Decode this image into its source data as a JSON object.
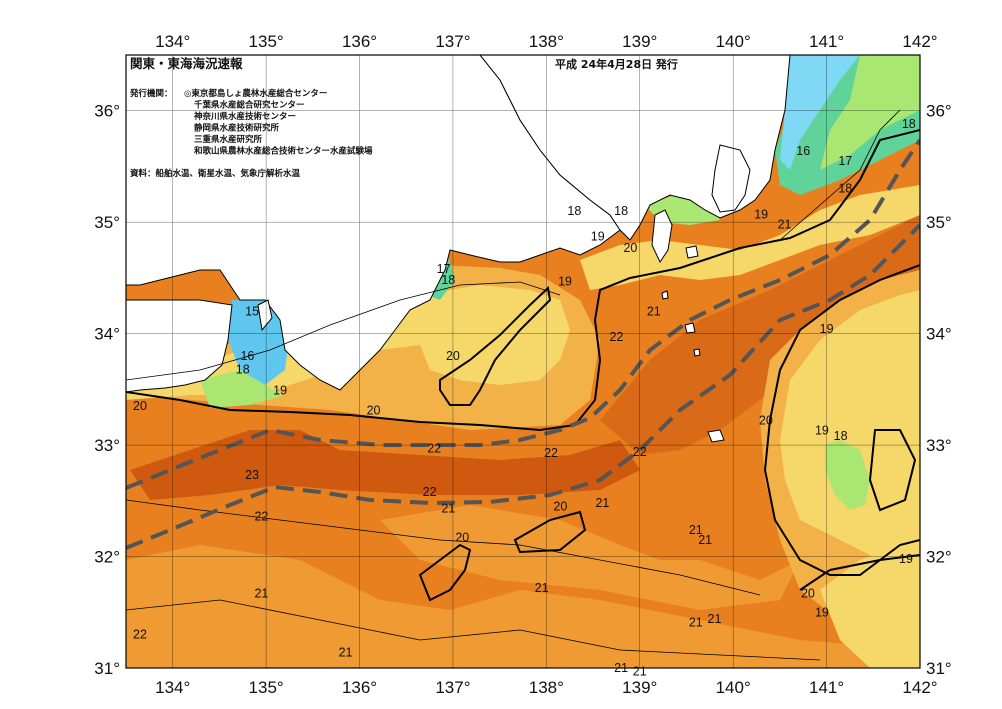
{
  "header": {
    "title": "関東・東海海況速報",
    "date": "平成 24年4月28日 発行"
  },
  "issuers": {
    "label": "発行機関：",
    "items": [
      "◎東京都島しょ農林水産総合センター",
      "千葉県水産総合研究センター",
      "神奈川県水産技術センター",
      "静岡県水産技術研究所",
      "三重県水産研究所",
      "和歌山県農林水産総合技術センター水産試験場"
    ]
  },
  "source": "資料：船舶水温、衛星水温、気象庁解析水温",
  "axes": {
    "lon_labels": [
      "134°",
      "135°",
      "136°",
      "137°",
      "138°",
      "139°",
      "140°",
      "141°",
      "142°"
    ],
    "lat_labels": [
      "36°",
      "35°",
      "34°",
      "33°",
      "32°",
      "31°"
    ]
  },
  "isotherm_labels": [
    {
      "text": "18",
      "lon": 141.88,
      "lat": 35.88
    },
    {
      "text": "16",
      "lon": 140.75,
      "lat": 35.64
    },
    {
      "text": "17",
      "lon": 141.2,
      "lat": 35.55
    },
    {
      "text": "18",
      "lon": 141.2,
      "lat": 35.3
    },
    {
      "text": "18",
      "lon": 138.8,
      "lat": 35.1
    },
    {
      "text": "18",
      "lon": 138.3,
      "lat": 35.1
    },
    {
      "text": "19",
      "lon": 140.3,
      "lat": 35.07
    },
    {
      "text": "21",
      "lon": 140.55,
      "lat": 34.98
    },
    {
      "text": "19",
      "lon": 138.55,
      "lat": 34.87
    },
    {
      "text": "20",
      "lon": 138.9,
      "lat": 34.77
    },
    {
      "text": "17",
      "lon": 136.9,
      "lat": 34.58
    },
    {
      "text": "18",
      "lon": 136.95,
      "lat": 34.48
    },
    {
      "text": "19",
      "lon": 138.2,
      "lat": 34.47
    },
    {
      "text": "21",
      "lon": 139.15,
      "lat": 34.2
    },
    {
      "text": "15",
      "lon": 134.85,
      "lat": 34.2
    },
    {
      "text": "19",
      "lon": 141.0,
      "lat": 34.04
    },
    {
      "text": "22",
      "lon": 138.75,
      "lat": 33.97
    },
    {
      "text": "20",
      "lon": 137.0,
      "lat": 33.8
    },
    {
      "text": "16",
      "lon": 134.8,
      "lat": 33.8
    },
    {
      "text": "18",
      "lon": 134.75,
      "lat": 33.68
    },
    {
      "text": "19",
      "lon": 135.15,
      "lat": 33.49
    },
    {
      "text": "20",
      "lon": 133.65,
      "lat": 33.35
    },
    {
      "text": "20",
      "lon": 136.15,
      "lat": 33.31
    },
    {
      "text": "20",
      "lon": 140.35,
      "lat": 33.22
    },
    {
      "text": "19",
      "lon": 140.95,
      "lat": 33.13
    },
    {
      "text": "18",
      "lon": 141.15,
      "lat": 33.08
    },
    {
      "text": "22",
      "lon": 136.8,
      "lat": 32.97
    },
    {
      "text": "22",
      "lon": 138.05,
      "lat": 32.93
    },
    {
      "text": "22",
      "lon": 139.0,
      "lat": 32.94
    },
    {
      "text": "23",
      "lon": 134.85,
      "lat": 32.73
    },
    {
      "text": "22",
      "lon": 136.75,
      "lat": 32.58
    },
    {
      "text": "21",
      "lon": 138.6,
      "lat": 32.48
    },
    {
      "text": "20",
      "lon": 138.15,
      "lat": 32.45
    },
    {
      "text": "21",
      "lon": 136.95,
      "lat": 32.43
    },
    {
      "text": "22",
      "lon": 134.95,
      "lat": 32.36
    },
    {
      "text": "21",
      "lon": 139.6,
      "lat": 32.24
    },
    {
      "text": "21",
      "lon": 139.7,
      "lat": 32.15
    },
    {
      "text": "20",
      "lon": 137.1,
      "lat": 32.17
    },
    {
      "text": "19",
      "lon": 141.85,
      "lat": 31.98
    },
    {
      "text": "21",
      "lon": 134.95,
      "lat": 31.67
    },
    {
      "text": "21",
      "lon": 137.95,
      "lat": 31.72
    },
    {
      "text": "20",
      "lon": 140.8,
      "lat": 31.67
    },
    {
      "text": "19",
      "lon": 140.95,
      "lat": 31.5
    },
    {
      "text": "21",
      "lon": 139.8,
      "lat": 31.44
    },
    {
      "text": "21",
      "lon": 139.6,
      "lat": 31.41
    },
    {
      "text": "22",
      "lon": 133.65,
      "lat": 31.3
    },
    {
      "text": "21",
      "lon": 135.85,
      "lat": 31.14
    },
    {
      "text": "21",
      "lon": 138.8,
      "lat": 31.0
    },
    {
      "text": "21",
      "lon": 139.0,
      "lat": 30.97
    }
  ],
  "colors": {
    "temp_15": "#5fc7ef",
    "temp_16": "#7fd8f4",
    "temp_17": "#5fd39a",
    "temp_18": "#a9e672",
    "temp_19": "#f6d86a",
    "temp_20": "#f3b247",
    "temp_21": "#ef9a33",
    "temp_22": "#e8801f",
    "temp_23": "#cf5a0f",
    "land": "#ffffff",
    "kuroshio_axis": "#555555",
    "contour": "#000000",
    "grid": "#000000"
  }
}
